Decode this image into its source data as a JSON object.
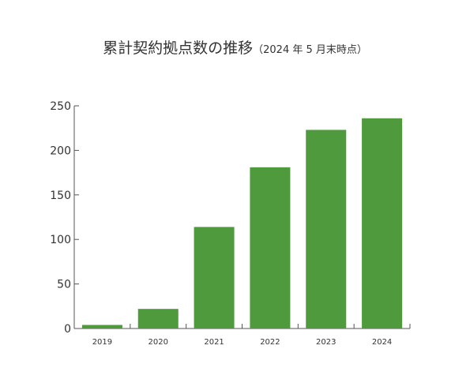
{
  "chart_data": {
    "type": "bar",
    "title": "累計契約拠点数の推移",
    "subtitle": "（2024 年 5 月末時点）",
    "categories": [
      "2019",
      "2020",
      "2021",
      "2022",
      "2023",
      "2024"
    ],
    "values": [
      4,
      22,
      114,
      181,
      223,
      236
    ],
    "ylim": [
      0,
      250
    ],
    "yticks": [
      0,
      50,
      100,
      150,
      200,
      250
    ],
    "ytick_labels": [
      "0",
      "50",
      "100",
      "150",
      "200",
      "250"
    ],
    "xlabel": "",
    "ylabel": "",
    "grid": false,
    "legend": "none",
    "bar_color": "#4e9a3c",
    "axis_color": "#555555"
  }
}
